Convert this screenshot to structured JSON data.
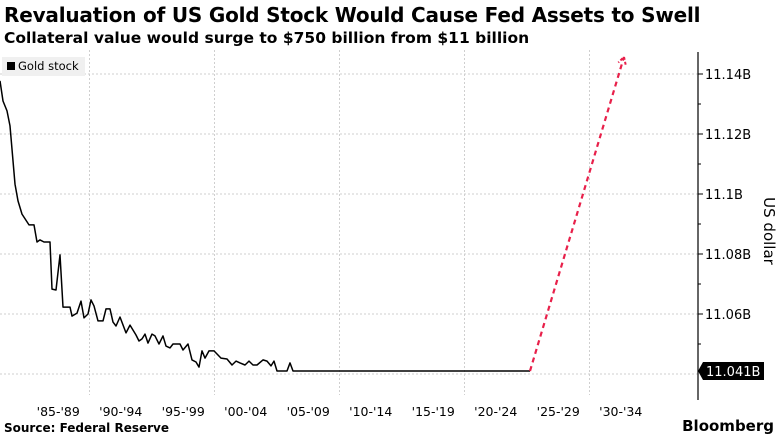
{
  "header": {
    "title": "Revaluation of US Gold Stock Would Cause Fed Assets to Swell",
    "subtitle": "Collateral value would surge to $750 billion from $11 billion"
  },
  "footer": {
    "source": "Source: Federal Reserve",
    "brand": "Bloomberg"
  },
  "chart_data": {
    "type": "line",
    "title": "",
    "xlabel": "",
    "ylabel": "US dollar",
    "ylim": [
      11.033,
      11.148
    ],
    "y_ticks": [
      11.06,
      11.08,
      11.1,
      11.12,
      11.14
    ],
    "y_tick_labels": [
      "11.06B",
      "11.08B",
      "11.1B",
      "11.12B",
      "11.14B"
    ],
    "x_tick_labels": [
      "'85-'89",
      "'90-'94",
      "'95-'99",
      "'00-'04",
      "'05-'09",
      "'10-'14",
      "'15-'19",
      "'20-'24",
      "'25-'29",
      "'30-'34"
    ],
    "grid": true,
    "legend": "top-left",
    "last_value_label": "11.041B",
    "series": [
      {
        "name": "Gold stock",
        "color": "#000000",
        "style": "solid",
        "x": [
          1982.84,
          1983.08,
          1983.4,
          1983.64,
          1984.04,
          1984.28,
          1984.6,
          1985.16,
          1985.56,
          1985.8,
          1986.04,
          1986.36,
          1986.84,
          1987.0,
          1987.32,
          1987.64,
          1987.88,
          1988.44,
          1988.6,
          1989.0,
          1989.32,
          1989.56,
          1989.88,
          1990.12,
          1990.36,
          1990.68,
          1991.08,
          1991.32,
          1991.64,
          1991.88,
          1992.12,
          1992.44,
          1992.92,
          1993.24,
          1993.72,
          1993.96,
          1994.2,
          1994.44,
          1994.68,
          1995.0,
          1995.24,
          1995.56,
          1995.88,
          1996.12,
          1996.44,
          1996.68,
          1997.24,
          1997.48,
          1997.88,
          1998.2,
          1998.52,
          1998.76,
          1999.0,
          1999.24,
          1999.56,
          1999.96,
          2000.52,
          2001.0,
          2001.4,
          2001.72,
          2002.04,
          2002.44,
          2002.76,
          2003.08,
          2003.4,
          2003.88,
          2004.2,
          2004.52,
          2004.76,
          2005.0,
          2005.8,
          2006.04,
          2006.28,
          2025.24
        ],
        "y": [
          11.1377,
          11.131,
          11.1277,
          11.1227,
          11.1033,
          11.0977,
          11.0933,
          11.0897,
          11.0897,
          11.084,
          11.0847,
          11.084,
          11.084,
          11.0683,
          11.068,
          11.0797,
          11.0623,
          11.0623,
          11.0593,
          11.0603,
          11.0643,
          11.0587,
          11.06,
          11.0647,
          11.0627,
          11.0577,
          11.0577,
          11.0617,
          11.0617,
          11.0573,
          11.056,
          11.059,
          11.0537,
          11.0563,
          11.053,
          11.051,
          11.0517,
          11.0533,
          11.0503,
          11.0533,
          11.0527,
          11.05,
          11.0527,
          11.0493,
          11.0487,
          11.05,
          11.05,
          11.048,
          11.05,
          11.0447,
          11.044,
          11.0423,
          11.0477,
          11.0453,
          11.0477,
          11.0477,
          11.0453,
          11.045,
          11.043,
          11.0443,
          11.0437,
          11.043,
          11.0443,
          11.043,
          11.043,
          11.0447,
          11.0443,
          11.0427,
          11.0443,
          11.041,
          11.041,
          11.0437,
          11.041,
          11.041
        ]
      },
      {
        "name": "",
        "color": "#e8204a",
        "style": "dashed-arrow",
        "x": [
          2025.24,
          2032.76
        ],
        "y": [
          11.041,
          11.1457
        ]
      }
    ]
  }
}
